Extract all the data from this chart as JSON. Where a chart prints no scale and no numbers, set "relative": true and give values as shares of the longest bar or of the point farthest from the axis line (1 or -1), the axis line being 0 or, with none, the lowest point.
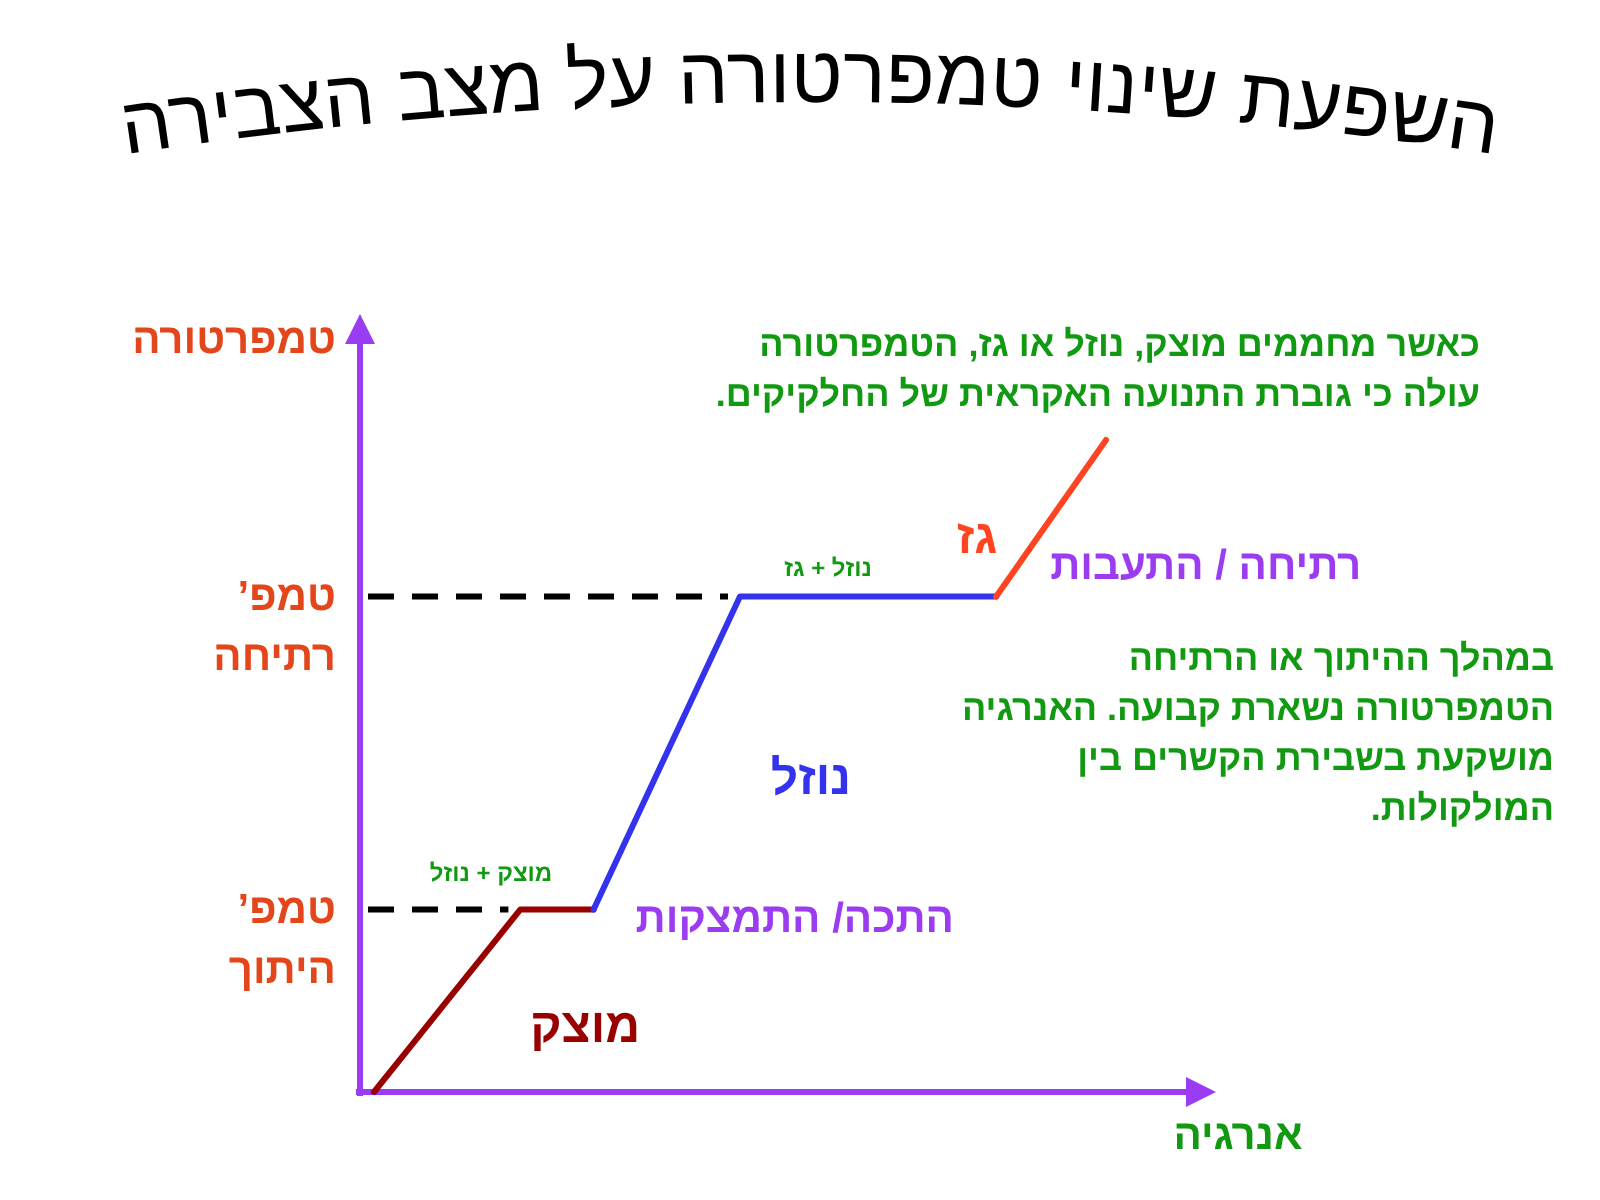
{
  "chart_data": {
    "type": "line",
    "relative": true,
    "title": "השפעת שינוי טמפרטורה על מצב הצבירה",
    "xlabel": "אנרגיה",
    "ylabel": "טמפרטורה",
    "categories": [
      null,
      null,
      null,
      null,
      null,
      null,
      null,
      null,
      null,
      null,
      null,
      null,
      null,
      null,
      null,
      null,
      null,
      null,
      null,
      null,
      null
    ],
    "series": [
      {
        "name": "מוצק",
        "color": "#990000",
        "values": [
          0,
          0.07,
          0.14,
          0.21,
          0.28,
          0.28,
          0.28,
          null,
          null,
          null,
          null,
          null,
          null,
          null,
          null,
          null,
          null,
          null,
          null,
          null,
          null
        ]
      },
      {
        "name": "נוזל",
        "color": "#3333ee",
        "values": [
          null,
          null,
          null,
          null,
          null,
          null,
          0.28,
          0.4,
          0.52,
          0.64,
          0.76,
          0.76,
          0.76,
          0.76,
          0.76,
          0.76,
          0.76,
          0.76,
          null,
          null,
          null
        ]
      },
      {
        "name": "גז",
        "color": "#ff4422",
        "values": [
          null,
          null,
          null,
          null,
          null,
          null,
          null,
          null,
          null,
          null,
          null,
          null,
          null,
          null,
          null,
          null,
          null,
          0.76,
          0.84,
          0.92,
          1
        ]
      }
    ],
    "annotations": [
      "כאשר מחממים מוצק, נוזל או גז, הטמפרטורה עולה כי גוברת התנועה האקראית של החלקיקים.",
      "במהלך ההיתוך או הרתיחה הטמפרטורה נשארת קבועה. האנרגיה מושקעת בשבירת הקשרים בין המולקולות.",
      "טמפ’ היתוך",
      "טמפ’ רתיחה",
      "מוצק + נוזל",
      "נוזל + גז",
      "התכה/ התמצקות",
      "רתיחה / התעבות"
    ]
  }
}
